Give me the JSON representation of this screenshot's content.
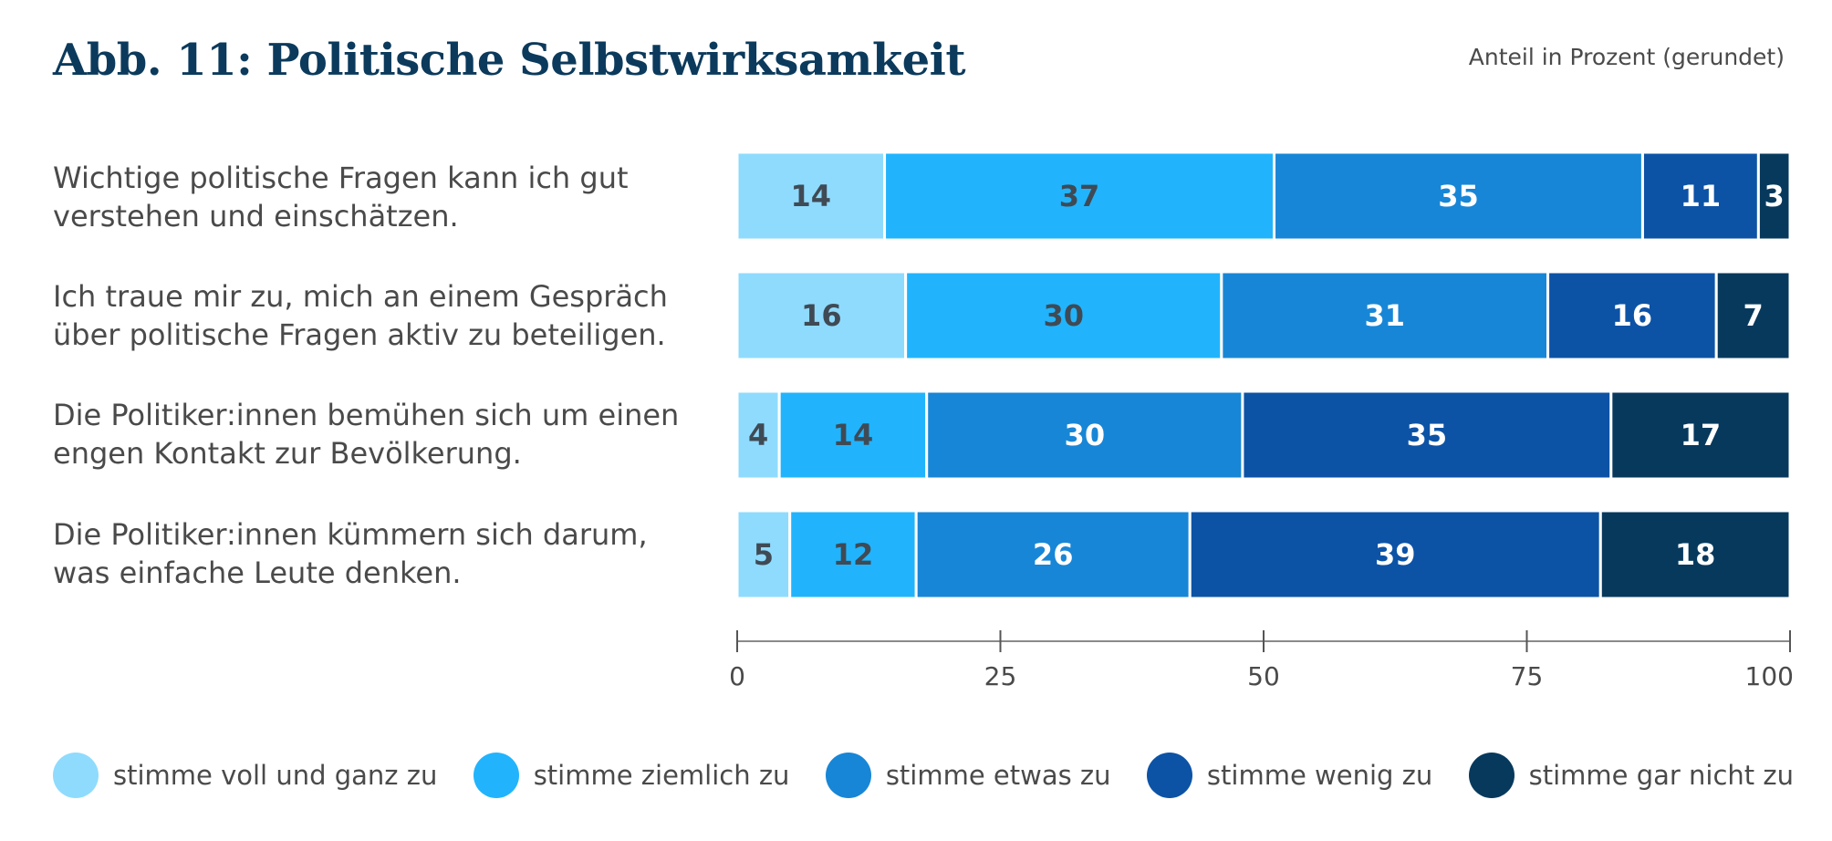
{
  "chart_data": {
    "type": "bar",
    "orientation": "horizontal",
    "stacked": true,
    "title": "Abb. 11: Politische Selbstwirksamkeit",
    "subtitle": "Anteil in Prozent (gerundet)",
    "categories": [
      "Wichtige politische Fragen kann ich gut verstehen und einschätzen.",
      "Ich traue mir zu, mich an einem Gespräch über politische Fragen aktiv zu beteiligen.",
      "Die Politiker:innen bemühen sich um einen engen Kontakt zur Bevölkerung.",
      "Die Politiker:innen kümmern sich darum, was einfache Leute denken."
    ],
    "label_lines": [
      [
        "Wichtige politische Fragen kann ich gut",
        "verstehen und einschätzen."
      ],
      [
        "Ich traue mir zu, mich an einem Gespräch",
        "über politische Fragen aktiv zu beteiligen."
      ],
      [
        "Die Politiker:innen bemühen sich um einen",
        "engen Kontakt zur Bevölkerung."
      ],
      [
        "Die Politiker:innen kümmern sich darum,",
        "was einfache Leute denken."
      ]
    ],
    "series": [
      {
        "name": "stimme voll und ganz zu",
        "color": "#8fdbfd",
        "label_color": "#3f4a55",
        "values": [
          14,
          16,
          4,
          5
        ]
      },
      {
        "name": "stimme ziemlich zu",
        "color": "#21b4fc",
        "label_color": "#3f4a55",
        "values": [
          37,
          30,
          14,
          12
        ]
      },
      {
        "name": "stimme etwas zu",
        "color": "#1886d6",
        "label_color": "#ffffff",
        "values": [
          35,
          31,
          30,
          26
        ]
      },
      {
        "name": "stimme wenig zu",
        "color": "#0c53a6",
        "label_color": "#ffffff",
        "values": [
          11,
          16,
          35,
          39
        ]
      },
      {
        "name": "stimme gar nicht zu",
        "color": "#07395d",
        "label_color": "#ffffff",
        "values": [
          3,
          7,
          17,
          18
        ]
      }
    ],
    "xlim": [
      0,
      100
    ],
    "xticks": [
      0,
      25,
      50,
      75,
      100
    ],
    "grid": false,
    "legend_position": "bottom"
  }
}
